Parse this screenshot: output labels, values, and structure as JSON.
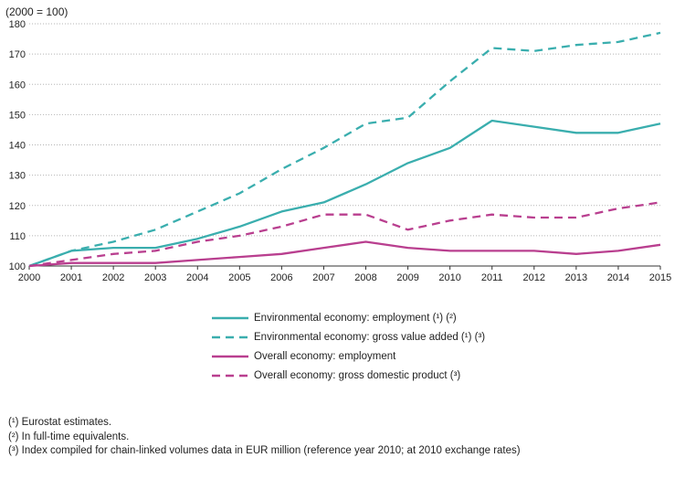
{
  "chart_data": {
    "type": "line",
    "ylabel": "(2000 = 100)",
    "x": [
      "2000",
      "2001",
      "2002",
      "2003",
      "2004",
      "2005",
      "2006",
      "2007",
      "2008",
      "2009",
      "2010",
      "2011",
      "2012",
      "2013",
      "2014",
      "2015"
    ],
    "ylim": [
      100,
      180
    ],
    "yticks": [
      100,
      110,
      120,
      130,
      140,
      150,
      160,
      170,
      180
    ],
    "grid": "horizontal dotted",
    "series": [
      {
        "name": "Environmental economy: employment (¹) (²)",
        "color": "#3aaeae",
        "dash": false,
        "values": [
          100,
          105,
          106,
          106,
          109,
          113,
          118,
          121,
          127,
          134,
          139,
          148,
          146,
          144,
          144,
          147
        ]
      },
      {
        "name": "Environmental economy: gross value added (¹) (³)",
        "color": "#3aaeae",
        "dash": true,
        "values": [
          100,
          105,
          108,
          112,
          118,
          124,
          132,
          139,
          147,
          149,
          161,
          172,
          171,
          173,
          174,
          177
        ]
      },
      {
        "name": "Overall economy: employment",
        "color": "#b93f8f",
        "dash": false,
        "values": [
          100,
          101,
          101,
          101,
          102,
          103,
          104,
          106,
          108,
          106,
          105,
          105,
          105,
          104,
          105,
          107
        ]
      },
      {
        "name": "Overall economy: gross domestic product (³)",
        "color": "#b93f8f",
        "dash": true,
        "values": [
          100,
          102,
          104,
          105,
          108,
          110,
          113,
          117,
          117,
          112,
          115,
          117,
          116,
          116,
          119,
          121
        ]
      }
    ]
  },
  "footnotes": [
    "(¹) Eurostat estimates.",
    "(²) In full-time equivalents.",
    "(³) Index compiled for chain-linked volumes data in EUR million (reference year 2010; at 2010 exchange rates)"
  ]
}
